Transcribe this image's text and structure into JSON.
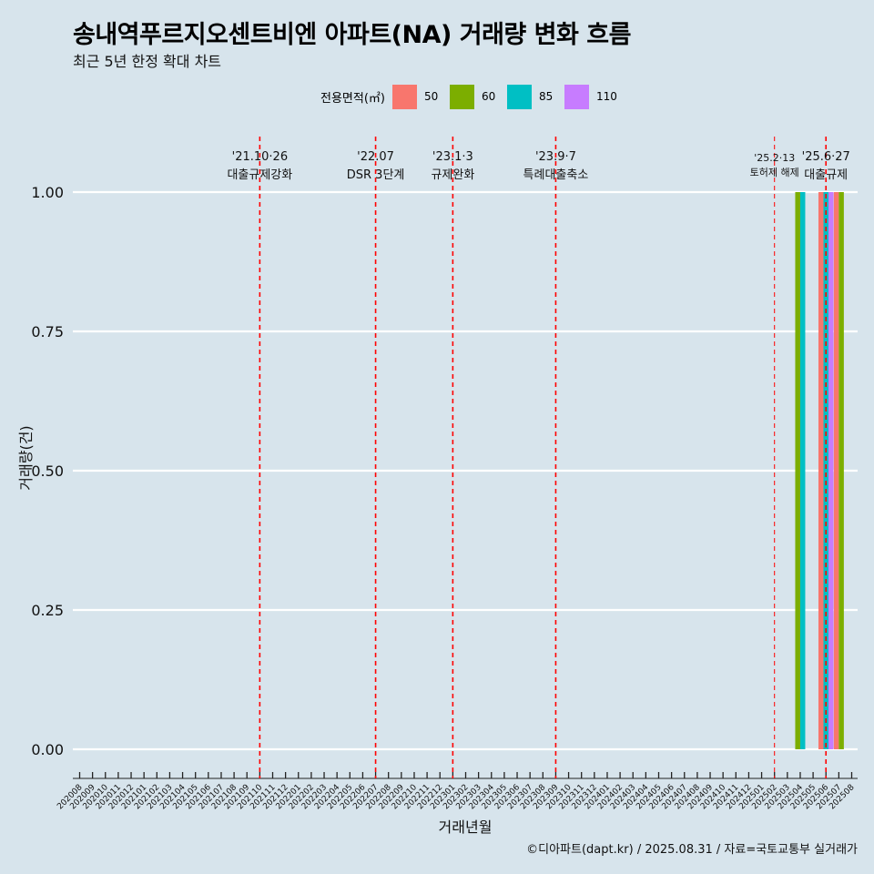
{
  "header": {
    "title": "송내역푸르지오센트비엔 아파트(NA) 거래량 변화 흐름",
    "subtitle": "최근 5년 한정 확대 차트"
  },
  "legend": {
    "title": "전용면적(㎡)",
    "items": [
      {
        "label": "50",
        "color": "#f8766d"
      },
      {
        "label": "60",
        "color": "#7cae00"
      },
      {
        "label": "85",
        "color": "#00bfc4"
      },
      {
        "label": "110",
        "color": "#c77cff"
      }
    ]
  },
  "caption": "©디아파트(dapt.kr) / 2025.08.31 / 자료=국토교통부 실거래가",
  "chart_data": {
    "type": "bar",
    "xlabel": "거래년월",
    "ylabel": "거래량(건)",
    "ylim": [
      0,
      1
    ],
    "yticks": [
      "0.00",
      "0.25",
      "0.50",
      "0.75",
      "1.00"
    ],
    "grid": true,
    "legend_position": "top",
    "categories": [
      "202008",
      "202009",
      "202010",
      "202011",
      "202012",
      "202101",
      "202102",
      "202103",
      "202104",
      "202105",
      "202106",
      "202107",
      "202108",
      "202109",
      "202110",
      "202111",
      "202112",
      "202201",
      "202202",
      "202203",
      "202204",
      "202205",
      "202206",
      "202207",
      "202208",
      "202209",
      "202210",
      "202211",
      "202212",
      "202301",
      "202302",
      "202303",
      "202304",
      "202305",
      "202306",
      "202307",
      "202308",
      "202309",
      "202310",
      "202311",
      "202312",
      "202401",
      "202402",
      "202403",
      "202404",
      "202405",
      "202406",
      "202407",
      "202408",
      "202409",
      "202410",
      "202411",
      "202412",
      "202501",
      "202502",
      "202503",
      "202504",
      "202505",
      "202506",
      "202507",
      "202508"
    ],
    "bars": [
      {
        "month": "202504",
        "segments": [
          {
            "area": "60",
            "value": 1
          },
          {
            "area": "85",
            "value": 1
          }
        ]
      },
      {
        "month": "202506",
        "segments": [
          {
            "area": "50",
            "value": 1
          },
          {
            "area": "85",
            "value": 1
          },
          {
            "area": "110",
            "value": 1
          }
        ]
      },
      {
        "month": "202507",
        "segments": [
          {
            "area": "50",
            "value": 1
          },
          {
            "area": "60",
            "value": 1
          }
        ]
      }
    ],
    "annotations": [
      {
        "month": "202110",
        "date": "'21.10·26",
        "text": "대출규제강화"
      },
      {
        "month": "202207",
        "date": "'22.07",
        "text": "DSR 3단계"
      },
      {
        "month": "202301",
        "date": "'23.1·3",
        "text": "규제완화"
      },
      {
        "month": "202309",
        "date": "'23.9·7",
        "text": "특례대출축소"
      },
      {
        "month": "202502",
        "date": "'25.2·13",
        "text": "토허제 해제"
      },
      {
        "month": "202506",
        "date": "'25.6·27",
        "text": "대출규제"
      }
    ]
  }
}
